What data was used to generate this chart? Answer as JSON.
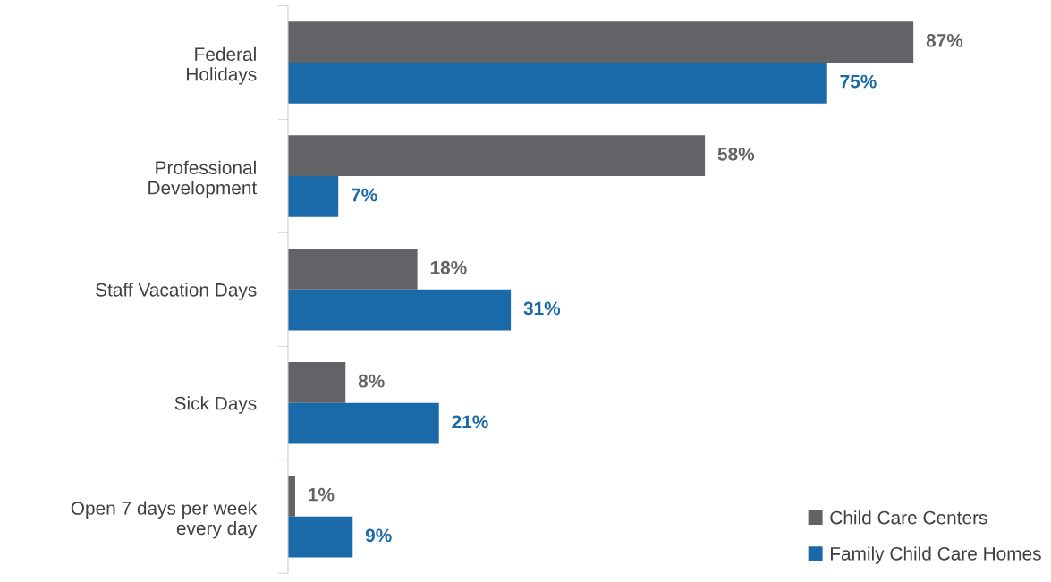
{
  "chart_data": {
    "type": "bar",
    "orientation": "horizontal",
    "categories": [
      "Federal\nHolidays",
      "Professional\nDevelopment",
      "Staff Vacation Days",
      "Sick Days",
      "Open 7 days per week\nevery day"
    ],
    "series": [
      {
        "name": "Child Care Centers",
        "color": "#636266",
        "values": [
          87,
          58,
          18,
          8,
          1
        ],
        "value_labels": [
          "87%",
          "58%",
          "18%",
          "8%",
          "1%"
        ]
      },
      {
        "name": "Family Child Care Homes",
        "color": "#1a6aaa",
        "values": [
          75,
          7,
          31,
          21,
          9
        ],
        "value_labels": [
          "75%",
          "7%",
          "31%",
          "21%",
          "9%"
        ]
      }
    ],
    "legend": "bottom right",
    "grid": false
  }
}
